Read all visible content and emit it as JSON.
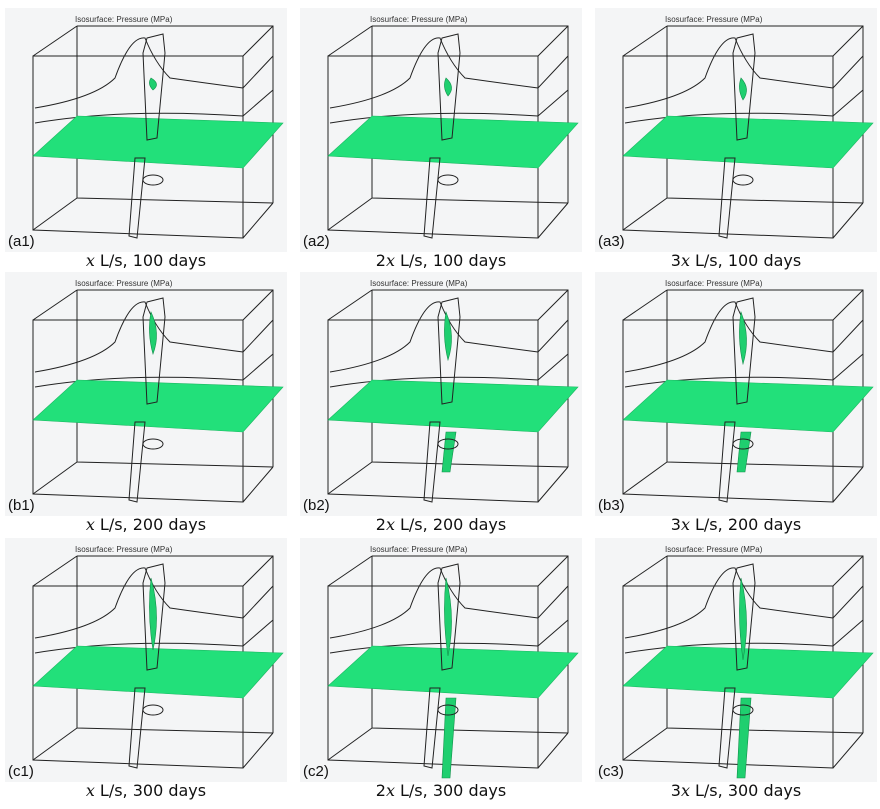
{
  "panels": [
    {
      "label": "(a1)",
      "header": "Isosurface: Pressure (MPa)",
      "caption_var": "x",
      "caption_rest": "L/s, 100 days"
    },
    {
      "label": "(a2)",
      "header": "Isosurface: Pressure (MPa)",
      "caption_prefix": "2",
      "caption_var": "x",
      "caption_rest": "L/s, 100 days"
    },
    {
      "label": "(a3)",
      "header": "Isosurface: Pressure (MPa)",
      "caption_prefix": "3",
      "caption_var": "x",
      "caption_rest": "L/s, 100 days"
    },
    {
      "label": "(b1)",
      "header": "Isosurface: Pressure (MPa)",
      "caption_var": "x",
      "caption_rest": "L/s, 200 days"
    },
    {
      "label": "(b2)",
      "header": "Isosurface: Pressure (MPa)",
      "caption_prefix": "2",
      "caption_var": "x",
      "caption_rest": "L/s, 200 days"
    },
    {
      "label": "(b3)",
      "header": "Isosurface: Pressure (MPa)",
      "caption_prefix": "3",
      "caption_var": "x",
      "caption_rest": "L/s, 200 days"
    },
    {
      "label": "(c1)",
      "header": "Isosurface: Pressure (MPa)",
      "caption_var": "x",
      "caption_rest": "L/s, 300 days"
    },
    {
      "label": "(c2)",
      "header": "Isosurface: Pressure (MPa)",
      "caption_prefix": "2",
      "caption_var": "x",
      "caption_rest": "L/s, 300 days"
    },
    {
      "label": "(c3)",
      "header": "Isosurface: Pressure (MPa)",
      "caption_prefix": "3",
      "caption_var": "x",
      "caption_rest": "L/s, 300 days"
    }
  ]
}
